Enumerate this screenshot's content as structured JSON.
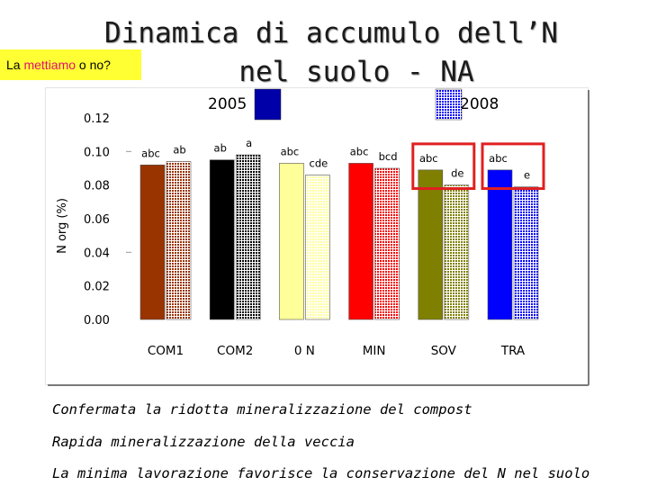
{
  "slide": {
    "title_line1": "Dinamica di accumulo dell’N",
    "title_line2": "nel suolo - NA",
    "badge_prefix": "La ",
    "badge_highlight": "mettiamo",
    "badge_suffix": " o no?",
    "captions": [
      "Confermata la ridotta mineralizzazione del compost",
      "Rapida mineralizzazione della veccia",
      "La minima lavorazione favorisce la conservazione del N nel suolo"
    ]
  },
  "chart_data": {
    "type": "bar",
    "title": "",
    "xlabel": "",
    "ylabel": "N org (%)",
    "ylim": [
      0,
      0.12
    ],
    "yticks": [
      "0.00",
      "0.02",
      "0.04",
      "0.06",
      "0.08",
      "0.10",
      "0.12"
    ],
    "categories": [
      "COM1",
      "COM2",
      "0 N",
      "MIN",
      "SOV",
      "TRA"
    ],
    "category_colors": [
      "#993300",
      "#000000",
      "#ffff99",
      "#ff0000",
      "#808000",
      "#0000ff"
    ],
    "series": [
      {
        "name": "2005",
        "values": [
          0.092,
          0.095,
          0.093,
          0.093,
          0.089,
          0.089
        ],
        "labels": [
          "abc",
          "ab",
          "abc",
          "abc",
          "abc",
          "abc"
        ],
        "pattern": "solid"
      },
      {
        "name": "2008",
        "values": [
          0.094,
          0.098,
          0.086,
          0.09,
          0.08,
          0.079
        ],
        "labels": [
          "ab",
          "a",
          "cde",
          "bcd",
          "de",
          "e"
        ],
        "pattern": "dotted"
      }
    ],
    "highlighted_categories": [
      "SOV",
      "TRA"
    ],
    "highlight_color": "#e02020"
  }
}
